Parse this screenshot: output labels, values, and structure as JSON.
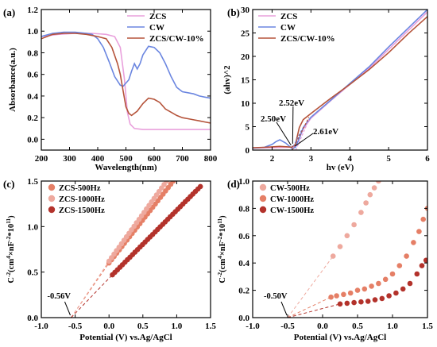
{
  "chart_data": [
    {
      "id": "a",
      "type": "line",
      "panel_label": "(a)",
      "xlabel": "Wavelength(nm)",
      "ylabel": "Absorbance(a.u.)",
      "xlim": [
        200,
        800
      ],
      "ylim": [
        -0.1,
        1.2
      ],
      "xticks": [
        "200",
        "300",
        "400",
        "500",
        "600",
        "700",
        "800"
      ],
      "yticks": [
        "0.0",
        "0.2",
        "0.4",
        "0.6",
        "0.8",
        "1.0",
        "1.2"
      ],
      "xtick_values": [
        200,
        300,
        400,
        500,
        600,
        700,
        800
      ],
      "ytick_values": [
        0,
        0.2,
        0.4,
        0.6,
        0.8,
        1.0,
        1.2
      ],
      "legend_position": "top-right",
      "series": [
        {
          "name": "ZCS",
          "color": "#e9a0dc",
          "x": [
            200,
            260,
            320,
            380,
            430,
            460,
            480,
            495,
            505,
            515,
            530,
            560,
            600,
            650,
            700,
            750,
            800
          ],
          "y": [
            0.95,
            0.97,
            0.98,
            0.98,
            0.97,
            0.95,
            0.85,
            0.55,
            0.25,
            0.14,
            0.1,
            0.09,
            0.09,
            0.09,
            0.09,
            0.09,
            0.09
          ]
        },
        {
          "name": "CW",
          "color": "#6b86e0",
          "x": [
            200,
            240,
            280,
            320,
            360,
            380,
            400,
            420,
            440,
            460,
            480,
            490,
            500,
            510,
            520,
            530,
            540,
            550,
            560,
            580,
            600,
            620,
            640,
            660,
            680,
            700,
            720,
            740,
            760,
            780,
            800
          ],
          "y": [
            0.95,
            0.98,
            0.99,
            0.99,
            0.98,
            0.97,
            0.93,
            0.85,
            0.72,
            0.58,
            0.5,
            0.49,
            0.52,
            0.55,
            0.63,
            0.7,
            0.65,
            0.7,
            0.78,
            0.86,
            0.85,
            0.8,
            0.7,
            0.58,
            0.48,
            0.44,
            0.43,
            0.42,
            0.4,
            0.39,
            0.38
          ]
        },
        {
          "name": "ZCS/CW-10%",
          "color": "#b5533a",
          "x": [
            200,
            240,
            280,
            320,
            360,
            400,
            430,
            450,
            470,
            480,
            490,
            500,
            510,
            520,
            540,
            560,
            580,
            600,
            620,
            640,
            660,
            680,
            700,
            720,
            740,
            760,
            780,
            800
          ],
          "y": [
            0.93,
            0.97,
            0.98,
            0.98,
            0.97,
            0.95,
            0.93,
            0.85,
            0.7,
            0.6,
            0.45,
            0.3,
            0.24,
            0.22,
            0.26,
            0.33,
            0.38,
            0.37,
            0.34,
            0.28,
            0.25,
            0.22,
            0.2,
            0.19,
            0.18,
            0.17,
            0.16,
            0.15
          ]
        }
      ]
    },
    {
      "id": "b",
      "type": "line",
      "panel_label": "(b)",
      "xlabel": "hv (eV)",
      "ylabel": "(ahv)^2",
      "xlim": [
        1.5,
        6
      ],
      "ylim": [
        0,
        30
      ],
      "xticks": [
        "2",
        "3",
        "4",
        "5",
        "6"
      ],
      "yticks": [
        "0",
        "5",
        "10",
        "15",
        "20",
        "25",
        "30"
      ],
      "xtick_values": [
        2,
        3,
        4,
        5,
        6
      ],
      "ytick_values": [
        0,
        5,
        10,
        15,
        20,
        25,
        30
      ],
      "legend_position": "top-left",
      "annotations": [
        "2.50eV",
        "2.52eV",
        "2.61eV"
      ],
      "series": [
        {
          "name": "ZCS",
          "color": "#e9a0dc",
          "x": [
            1.5,
            2.0,
            2.4,
            2.55,
            2.6,
            2.7,
            2.8,
            3.0,
            3.5,
            4.0,
            4.5,
            5.0,
            5.5,
            6.0
          ],
          "y": [
            0.4,
            0.5,
            0.6,
            0.7,
            0.8,
            2.5,
            4.5,
            6.8,
            10.5,
            14.0,
            17.5,
            21.5,
            25.5,
            29.5
          ]
        },
        {
          "name": "CW",
          "color": "#6b86e0",
          "x": [
            1.5,
            1.8,
            2.0,
            2.1,
            2.2,
            2.35,
            2.45,
            2.52,
            2.6,
            2.7,
            2.8,
            3.0,
            3.5,
            4.0,
            4.5,
            5.0,
            5.5,
            6.0
          ],
          "y": [
            0.4,
            0.6,
            1.2,
            1.8,
            2.2,
            1.5,
            0.8,
            0.3,
            0.6,
            2.5,
            4.8,
            7.0,
            10.6,
            14.2,
            17.8,
            22.0,
            26.0,
            30.0
          ]
        },
        {
          "name": "ZCS/CW-10%",
          "color": "#b5533a",
          "x": [
            1.5,
            1.8,
            2.0,
            2.2,
            2.4,
            2.5,
            2.6,
            2.7,
            2.8,
            3.0,
            3.5,
            4.0,
            4.5,
            5.0,
            5.5,
            6.0
          ],
          "y": [
            0.5,
            0.6,
            0.7,
            0.8,
            0.7,
            0.6,
            1.2,
            4.8,
            6.5,
            7.8,
            11.0,
            14.0,
            17.2,
            20.8,
            24.8,
            28.5
          ]
        }
      ]
    },
    {
      "id": "c",
      "type": "scatter",
      "panel_label": "(c)",
      "xlabel": "Potential (V) vs.Ag/AgCl",
      "ylabel": "C-2(cm4×nF-2*1011)",
      "xlim": [
        -1.0,
        1.5
      ],
      "ylim": [
        0,
        1.5
      ],
      "xticks": [
        "-1.0",
        "-0.5",
        "0.0",
        "0.5",
        "1.0",
        "1.5"
      ],
      "yticks": [
        "0.0",
        "0.5",
        "1.0",
        "1.5"
      ],
      "xtick_values": [
        -1.0,
        -0.5,
        0.0,
        0.5,
        1.0,
        1.5
      ],
      "ytick_values": [
        0,
        0.5,
        1.0,
        1.5
      ],
      "legend_position": "top-left",
      "annotation": "-0.56V",
      "intercept": -0.56,
      "series": [
        {
          "name": "ZCS-500Hz",
          "color": "#e57f66",
          "x_start": 0.0,
          "x_end": 0.95,
          "y_start": 0.6,
          "y_end": 1.5,
          "n": 26
        },
        {
          "name": "ZCS-1000Hz",
          "color": "#eea99e",
          "x_start": 0.0,
          "x_end": 0.85,
          "y_start": 0.62,
          "y_end": 1.5,
          "n": 24
        },
        {
          "name": "ZCS-1500Hz",
          "color": "#b3322b",
          "x_start": 0.05,
          "x_end": 1.35,
          "y_start": 0.47,
          "y_end": 1.44,
          "n": 36
        }
      ]
    },
    {
      "id": "d",
      "type": "scatter",
      "panel_label": "(d)",
      "xlabel": "Potential (V) vs.Ag/AgCl",
      "ylabel": "C-2(cm4×nF-2*1011)",
      "xlim": [
        -1.0,
        1.5
      ],
      "ylim": [
        0,
        1.0
      ],
      "xticks": [
        "-1.0",
        "-0.5",
        "0.0",
        "0.5",
        "1.0",
        "1.5"
      ],
      "yticks": [
        "0.0",
        "0.2",
        "0.4",
        "0.6",
        "0.8",
        "1.0"
      ],
      "xtick_values": [
        -1.0,
        -0.5,
        0.0,
        0.5,
        1.0,
        1.5
      ],
      "ytick_values": [
        0,
        0.2,
        0.4,
        0.6,
        0.8,
        1.0
      ],
      "legend_position": "top-left",
      "annotation": "-0.50V",
      "intercept": -0.5,
      "series": [
        {
          "name": "CW-500Hz",
          "color": "#eea99e",
          "points": [
            [
              0.15,
              0.45
            ],
            [
              0.25,
              0.52
            ],
            [
              0.35,
              0.6
            ],
            [
              0.45,
              0.68
            ],
            [
              0.55,
              0.77
            ],
            [
              0.62,
              0.84
            ],
            [
              0.68,
              0.9
            ],
            [
              0.74,
              0.95
            ],
            [
              0.8,
              1.0
            ]
          ]
        },
        {
          "name": "CW-1000Hz",
          "color": "#e57f66",
          "points": [
            [
              0.12,
              0.15
            ],
            [
              0.2,
              0.16
            ],
            [
              0.3,
              0.17
            ],
            [
              0.4,
              0.18
            ],
            [
              0.5,
              0.2
            ],
            [
              0.6,
              0.21
            ],
            [
              0.7,
              0.23
            ],
            [
              0.8,
              0.25
            ],
            [
              0.9,
              0.28
            ],
            [
              1.0,
              0.32
            ],
            [
              1.1,
              0.38
            ],
            [
              1.2,
              0.45
            ],
            [
              1.3,
              0.55
            ],
            [
              1.38,
              0.63
            ],
            [
              1.44,
              0.72
            ],
            [
              1.5,
              0.8
            ]
          ]
        },
        {
          "name": "CW-1500Hz",
          "color": "#b3322b",
          "points": [
            [
              0.25,
              0.1
            ],
            [
              0.35,
              0.105
            ],
            [
              0.45,
              0.11
            ],
            [
              0.55,
              0.115
            ],
            [
              0.65,
              0.12
            ],
            [
              0.75,
              0.13
            ],
            [
              0.85,
              0.14
            ],
            [
              0.95,
              0.16
            ],
            [
              1.05,
              0.18
            ],
            [
              1.15,
              0.21
            ],
            [
              1.25,
              0.25
            ],
            [
              1.35,
              0.32
            ],
            [
              1.42,
              0.38
            ],
            [
              1.48,
              0.42
            ]
          ]
        }
      ]
    }
  ]
}
